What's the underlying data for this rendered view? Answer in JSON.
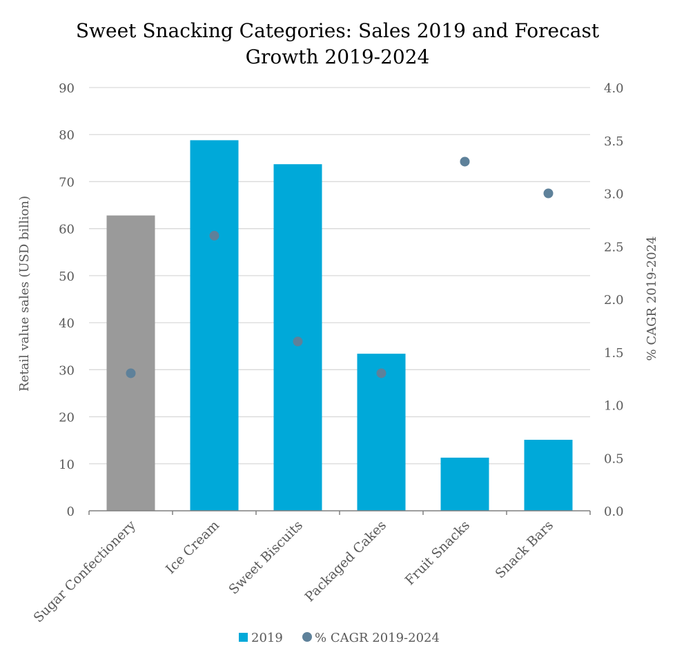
{
  "chart_data": {
    "type": "bar",
    "title_lines": [
      "Sweet Snacking Categories: Sales 2019 and Forecast",
      "Growth 2019-2024"
    ],
    "categories": [
      "Sugar Confectionery",
      "Ice Cream",
      "Sweet Biscuits",
      "Packaged Cakes",
      "Fruit Snacks",
      "Snack Bars"
    ],
    "series": [
      {
        "name": "2019",
        "type": "bar",
        "axis": "left",
        "values": [
          62.8,
          78.8,
          73.7,
          33.4,
          11.3,
          15.1
        ],
        "color": "#00A9D9",
        "point_colors": [
          "#9A9A9A",
          "#00A9D9",
          "#00A9D9",
          "#00A9D9",
          "#00A9D9",
          "#00A9D9"
        ]
      },
      {
        "name": "% CAGR 2019-2024",
        "type": "scatter",
        "axis": "right",
        "values": [
          1.3,
          2.6,
          1.6,
          1.3,
          3.3,
          3.0
        ],
        "color": "#5E819A"
      }
    ],
    "ylabel": "Retail value sales (USD billion)",
    "y2label": "% CAGR 2019-2024",
    "ylim": [
      0,
      90
    ],
    "y2lim": [
      0,
      4.0
    ],
    "yticks": [
      "0",
      "10",
      "20",
      "30",
      "40",
      "50",
      "60",
      "70",
      "80",
      "90"
    ],
    "y2ticks": [
      "0.0",
      "0.5",
      "1.0",
      "1.5",
      "2.0",
      "2.5",
      "3.0",
      "3.5",
      "4.0"
    ],
    "grid": true,
    "legend_position": "bottom"
  }
}
